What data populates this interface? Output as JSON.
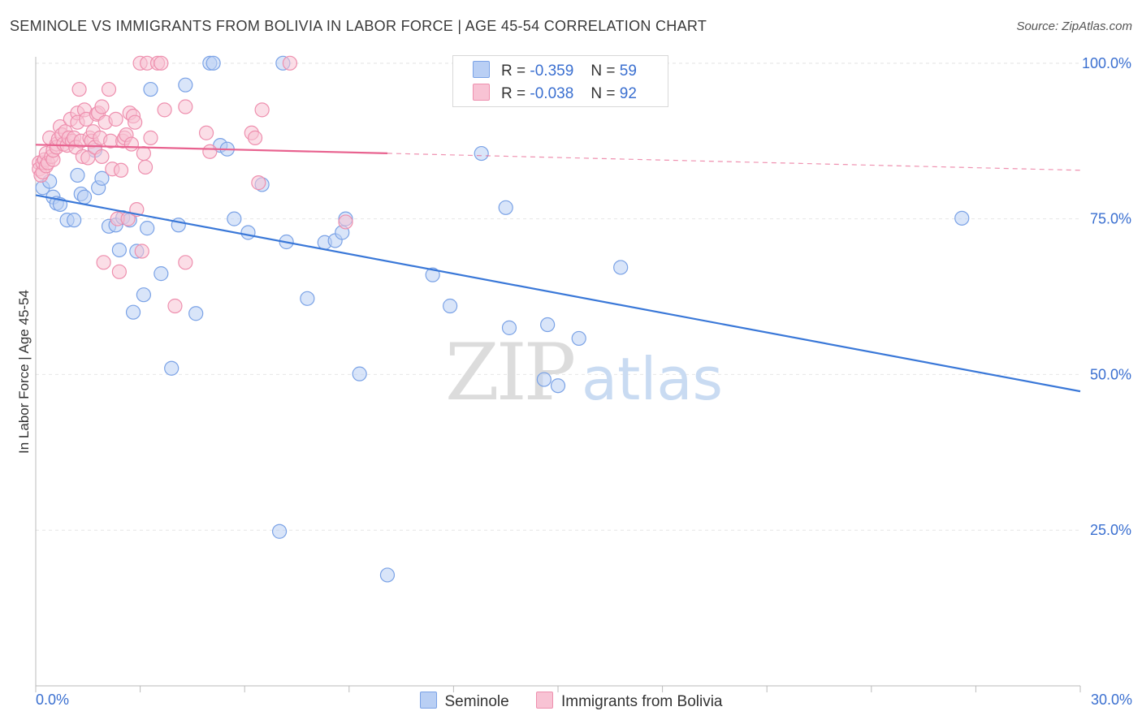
{
  "title": "SEMINOLE VS IMMIGRANTS FROM BOLIVIA IN LABOR FORCE | AGE 45-54 CORRELATION CHART",
  "source": "Source: ZipAtlas.com",
  "watermark": {
    "zip": "ZIP",
    "atlas": "atlas"
  },
  "legend": {
    "r_label": "R =",
    "n_label": "N =",
    "rows": [
      {
        "r": "-0.359",
        "n": "59",
        "fill": "#b9cff4",
        "stroke": "#7aa2e6"
      },
      {
        "r": "-0.038",
        "n": "92",
        "fill": "#f8c3d4",
        "stroke": "#ee8fae"
      }
    ]
  },
  "chart_data": {
    "type": "scatter",
    "title": "SEMINOLE VS IMMIGRANTS FROM BOLIVIA IN LABOR FORCE | AGE 45-54 CORRELATION CHART",
    "xlabel": "",
    "ylabel": "In Labor Force | Age 45-54",
    "xlim": [
      0,
      30
    ],
    "ylim": [
      0,
      105
    ],
    "x_tick_labels": [
      "0.0%",
      "30.0%"
    ],
    "y_ticks": [
      25,
      50,
      75,
      100
    ],
    "y_tick_labels": [
      "25.0%",
      "50.0%",
      "75.0%",
      "100.0%"
    ],
    "grid": true,
    "series": [
      {
        "name": "Seminole",
        "color": "#3a78d8",
        "fill": "#b9cff4",
        "stroke": "#7aa2e6",
        "trend": {
          "x0": 0,
          "y0": 78.8,
          "x1": 30,
          "y1": 47.3,
          "solid_until": 30
        },
        "points": [
          [
            0.2,
            80
          ],
          [
            0.4,
            81
          ],
          [
            0.5,
            78.5
          ],
          [
            0.6,
            77.5
          ],
          [
            0.7,
            77.3
          ],
          [
            0.9,
            74.8
          ],
          [
            1.1,
            74.8
          ],
          [
            1.2,
            82
          ],
          [
            1.3,
            79
          ],
          [
            1.4,
            78.5
          ],
          [
            1.7,
            86
          ],
          [
            1.8,
            80
          ],
          [
            1.9,
            81.5
          ],
          [
            2.1,
            73.8
          ],
          [
            2.3,
            74
          ],
          [
            2.4,
            70
          ],
          [
            2.5,
            75.2
          ],
          [
            2.7,
            74.8
          ],
          [
            2.8,
            60
          ],
          [
            2.9,
            69.8
          ],
          [
            3.1,
            62.8
          ],
          [
            3.2,
            73.5
          ],
          [
            3.3,
            95.8
          ],
          [
            3.6,
            66.2
          ],
          [
            3.9,
            51
          ],
          [
            4.1,
            74
          ],
          [
            4.3,
            96.5
          ],
          [
            4.6,
            59.8
          ],
          [
            5.0,
            100
          ],
          [
            5.1,
            100
          ],
          [
            5.3,
            86.8
          ],
          [
            5.5,
            86.2
          ],
          [
            5.7,
            75
          ],
          [
            6.1,
            72.8
          ],
          [
            6.5,
            80.5
          ],
          [
            7.0,
            24.8
          ],
          [
            7.1,
            100
          ],
          [
            7.2,
            71.3
          ],
          [
            7.8,
            62.2
          ],
          [
            8.3,
            71.2
          ],
          [
            8.6,
            71.5
          ],
          [
            8.8,
            72.8
          ],
          [
            8.9,
            75
          ],
          [
            9.3,
            50.1
          ],
          [
            10.1,
            17.8
          ],
          [
            11.4,
            66
          ],
          [
            11.9,
            61
          ],
          [
            12.8,
            85.5
          ],
          [
            13.5,
            76.8
          ],
          [
            13.6,
            57.5
          ],
          [
            14.6,
            49.2
          ],
          [
            14.7,
            58
          ],
          [
            15.0,
            48.2
          ],
          [
            15.6,
            55.8
          ],
          [
            16.8,
            67.2
          ],
          [
            26.6,
            75.1
          ]
        ]
      },
      {
        "name": "Immigrants from Bolivia",
        "color": "#e8628f",
        "fill": "#f8c3d4",
        "stroke": "#ee8fae",
        "trend": {
          "x0": 0,
          "y0": 86.9,
          "x1": 30,
          "y1": 82.8,
          "solid_until": 10.1
        },
        "points": [
          [
            0.1,
            84
          ],
          [
            0.1,
            83
          ],
          [
            0.15,
            82
          ],
          [
            0.2,
            82.5
          ],
          [
            0.2,
            84
          ],
          [
            0.25,
            84.5
          ],
          [
            0.3,
            85.5
          ],
          [
            0.3,
            83.5
          ],
          [
            0.35,
            84
          ],
          [
            0.4,
            88
          ],
          [
            0.45,
            85
          ],
          [
            0.5,
            84.5
          ],
          [
            0.5,
            86
          ],
          [
            0.6,
            87
          ],
          [
            0.6,
            86.5
          ],
          [
            0.65,
            87.8
          ],
          [
            0.7,
            89.8
          ],
          [
            0.75,
            88.5
          ],
          [
            0.8,
            87
          ],
          [
            0.85,
            89
          ],
          [
            0.9,
            86.8
          ],
          [
            0.95,
            88
          ],
          [
            1.0,
            91
          ],
          [
            1.05,
            87.5
          ],
          [
            1.1,
            88
          ],
          [
            1.15,
            86.5
          ],
          [
            1.2,
            92
          ],
          [
            1.2,
            90.5
          ],
          [
            1.25,
            95.8
          ],
          [
            1.3,
            87.5
          ],
          [
            1.35,
            85
          ],
          [
            1.4,
            92.5
          ],
          [
            1.45,
            91
          ],
          [
            1.5,
            84.8
          ],
          [
            1.55,
            88
          ],
          [
            1.6,
            87.5
          ],
          [
            1.65,
            89
          ],
          [
            1.7,
            86.5
          ],
          [
            1.75,
            91.8
          ],
          [
            1.8,
            92
          ],
          [
            1.85,
            88
          ],
          [
            1.9,
            85
          ],
          [
            1.9,
            93
          ],
          [
            1.95,
            68
          ],
          [
            2.0,
            90.5
          ],
          [
            2.1,
            95.8
          ],
          [
            2.15,
            87.5
          ],
          [
            2.2,
            83
          ],
          [
            2.3,
            91
          ],
          [
            2.35,
            75
          ],
          [
            2.4,
            66.5
          ],
          [
            2.45,
            82.8
          ],
          [
            2.5,
            87.5
          ],
          [
            2.55,
            88
          ],
          [
            2.6,
            88.5
          ],
          [
            2.65,
            75
          ],
          [
            2.7,
            92
          ],
          [
            2.75,
            87
          ],
          [
            2.8,
            91.5
          ],
          [
            2.85,
            90.5
          ],
          [
            2.9,
            76.5
          ],
          [
            3.0,
            100
          ],
          [
            3.05,
            69.8
          ],
          [
            3.1,
            85.5
          ],
          [
            3.15,
            83.3
          ],
          [
            3.2,
            100
          ],
          [
            3.3,
            88
          ],
          [
            3.5,
            100
          ],
          [
            3.6,
            100
          ],
          [
            3.7,
            92.5
          ],
          [
            4.0,
            61
          ],
          [
            4.3,
            68
          ],
          [
            4.3,
            93
          ],
          [
            4.9,
            88.8
          ],
          [
            5.0,
            85.8
          ],
          [
            6.2,
            88.8
          ],
          [
            6.3,
            88
          ],
          [
            6.4,
            80.8
          ],
          [
            6.5,
            92.5
          ],
          [
            7.3,
            100
          ],
          [
            8.9,
            74.5
          ]
        ]
      }
    ]
  },
  "bottom_legend": [
    {
      "label": "Seminole",
      "fill": "#b9cff4",
      "stroke": "#7aa2e6"
    },
    {
      "label": "Immigrants from Bolivia",
      "fill": "#f8c3d4",
      "stroke": "#ee8fae"
    }
  ],
  "x_axis": {
    "min_label": "0.0%",
    "max_label": "30.0%"
  }
}
